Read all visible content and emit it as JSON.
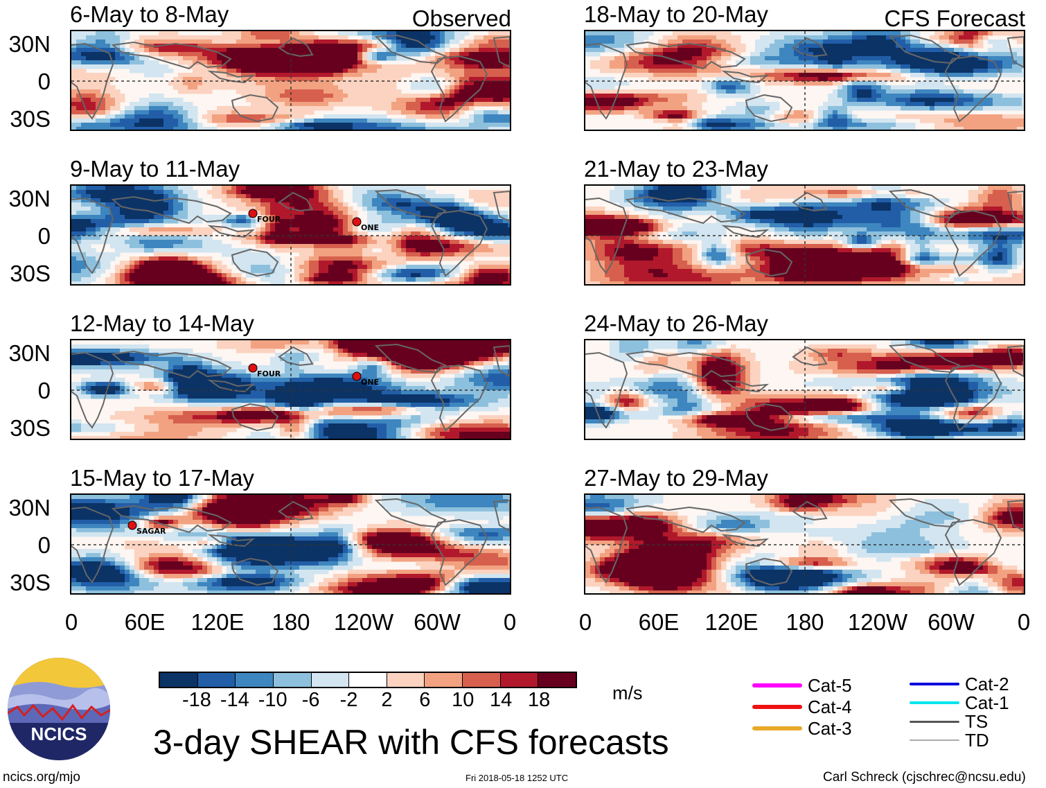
{
  "panels": [
    {
      "title": "6-May to 8-May",
      "tag": "Observed",
      "storms": []
    },
    {
      "title": "9-May to 11-May",
      "tag": "",
      "storms": [
        {
          "name": "FOUR"
        },
        {
          "name": "ONE"
        }
      ]
    },
    {
      "title": "12-May to 14-May",
      "tag": "",
      "storms": [
        {
          "name": "FOUR"
        },
        {
          "name": "ONE"
        }
      ]
    },
    {
      "title": "15-May to 17-May",
      "tag": "",
      "storms": [
        {
          "name": "SAGAR"
        }
      ]
    },
    {
      "title": "18-May to 20-May",
      "tag": "CFS Forecast",
      "storms": []
    },
    {
      "title": "21-May to 23-May",
      "tag": "",
      "storms": []
    },
    {
      "title": "24-May to 26-May",
      "tag": "",
      "storms": []
    },
    {
      "title": "27-May to 29-May",
      "tag": "",
      "storms": []
    }
  ],
  "y_axis_labels": [
    "30N",
    "0",
    "30S"
  ],
  "x_axis_labels": [
    "0",
    "60E",
    "120E",
    "180",
    "120W",
    "60W",
    "0"
  ],
  "colorbar": {
    "colors": [
      "#0b3366",
      "#225ea8",
      "#3e86bf",
      "#8dc0dd",
      "#d2e5f0",
      "#ffffff",
      "#fbd3c0",
      "#f2a281",
      "#d6604d",
      "#b2182b",
      "#67001f"
    ],
    "ticks": [
      "-18",
      "-14",
      "-10",
      "-6",
      "-2",
      "2",
      "6",
      "10",
      "14",
      "18"
    ],
    "units": "m/s"
  },
  "legend": [
    {
      "label": "Cat-5",
      "color": "#ff00ff"
    },
    {
      "label": "Cat-4",
      "color": "#ee1111"
    },
    {
      "label": "Cat-3",
      "color": "#e8a828"
    },
    {
      "label": "Cat-2",
      "color": "#0000dd"
    },
    {
      "label": "Cat-1",
      "color": "#00e5ee"
    },
    {
      "label": "TS",
      "color": "#555555"
    },
    {
      "label": "TD",
      "color": "#aaaaaa"
    }
  ],
  "logo_text": "NCICS",
  "main_title": "3-day SHEAR with CFS forecasts",
  "footer": {
    "left": "ncics.org/mjo",
    "center": "Fri 2018-05-18 1252 UTC",
    "right": "Carl Schreck (cjschrec@ncsu.edu)"
  }
}
